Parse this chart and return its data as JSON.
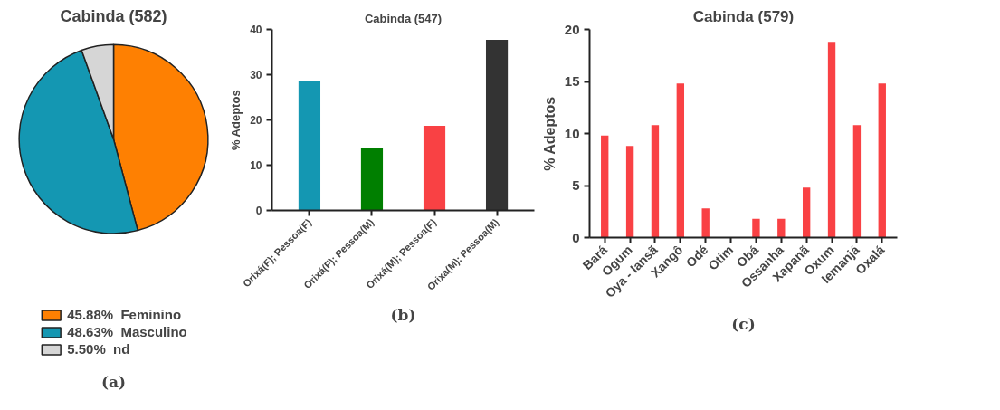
{
  "chart_data": [
    {
      "type": "pie",
      "title": "Cabinda (582)",
      "categories": [
        "Feminino",
        "Masculino",
        "nd"
      ],
      "values": [
        45.88,
        48.63,
        5.5
      ],
      "value_labels": [
        "45.88%",
        "48.63%",
        "5.50%"
      ],
      "colors": [
        "#fe8002",
        "#1497b2",
        "#d6d6d6"
      ],
      "legend": "bottom",
      "annotations": [
        "(a)"
      ]
    },
    {
      "type": "bar",
      "title": "Cabinda (547)",
      "ylabel": "% Adeptos",
      "categories": [
        "Orixá(F); Pessoa(F)",
        "Orixá(F); Pessoa(M)",
        "Orixá(M); Pessoa(F)",
        "Orixá(M); Pessoa(M)"
      ],
      "values": [
        28.7,
        13.7,
        18.7,
        37.7
      ],
      "colors": [
        "#1497b2",
        "#007f00",
        "#f94144",
        "#333333"
      ],
      "ylim": [
        0,
        40
      ],
      "yticks": [
        0,
        10,
        20,
        30,
        40
      ],
      "grid": false,
      "annotations": [
        "(b)"
      ]
    },
    {
      "type": "bar",
      "title": "Cabinda (579)",
      "ylabel": "% Adeptos",
      "categories": [
        "Bará",
        "Ogum",
        "Oya - Iansã",
        "Xangô",
        "Odé",
        "Otim",
        "Obá",
        "Ossanha",
        "Xapanã",
        "Oxum",
        "Iemanjá",
        "Oxalá"
      ],
      "values": [
        9.8,
        8.8,
        10.8,
        14.8,
        2.8,
        0,
        1.8,
        1.8,
        4.8,
        18.8,
        10.8,
        14.8
      ],
      "colors": [
        "#f94144",
        "#f94144",
        "#f94144",
        "#f94144",
        "#f94144",
        "#f94144",
        "#f94144",
        "#f94144",
        "#f94144",
        "#f94144",
        "#f94144",
        "#f94144"
      ],
      "ylim": [
        0,
        20
      ],
      "yticks": [
        0,
        5,
        10,
        15,
        20
      ],
      "grid": false,
      "annotations": [
        "(c)"
      ]
    }
  ]
}
